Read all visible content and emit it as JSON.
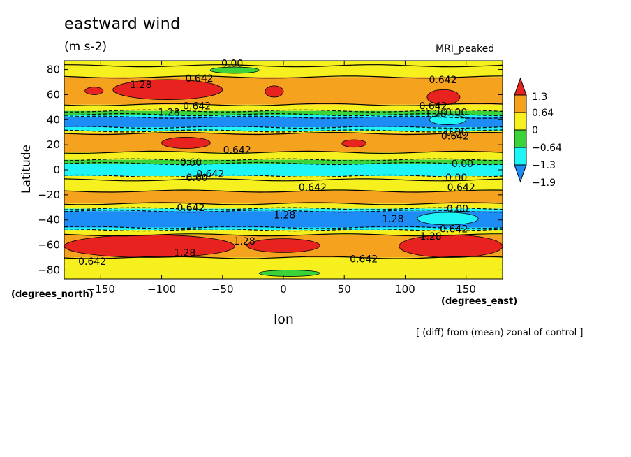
{
  "chart_data": {
    "type": "heatmap",
    "title": "eastward wind",
    "units": "(m s-2)",
    "model_label": "MRI_peaked",
    "xlabel": "lon",
    "ylabel": "Latitude",
    "x_units": "(degrees_east)",
    "y_units": "(degrees_north)",
    "footnote": "[ (diff) from (mean) zonal of control ]",
    "xlim": [
      -180,
      180
    ],
    "ylim": [
      -87,
      87
    ],
    "x_ticks": [
      -150,
      -100,
      -50,
      0,
      50,
      100,
      150
    ],
    "x_tick_labels": [
      "−150",
      "−100",
      "−50",
      "0",
      "50",
      "100",
      "150"
    ],
    "y_ticks": [
      -80,
      -60,
      -40,
      -20,
      0,
      20,
      40,
      60,
      80
    ],
    "y_tick_labels": [
      "−80",
      "−60",
      "−40",
      "−20",
      "0",
      "20",
      "40",
      "60",
      "80"
    ],
    "colorbar": {
      "levels": [
        1.3,
        0.64,
        0,
        -0.64,
        -1.3,
        -1.9
      ],
      "labels": [
        "1.3",
        "0.64",
        "0",
        "−0.64",
        "−1.3",
        "−1.9"
      ],
      "colors": [
        "#e8221f",
        "#f5a21e",
        "#f5f01e",
        "#3ad43a",
        "#1ef5f5",
        "#1e8cf5"
      ]
    },
    "bands": [
      {
        "lat_from": 87,
        "lat_to": 83,
        "value": 0.3
      },
      {
        "lat_from": 83,
        "lat_to": 74,
        "value": 0.3
      },
      {
        "lat_from": 74,
        "lat_to": 52,
        "value": 0.9
      },
      {
        "lat_from": 52,
        "lat_to": 47,
        "value": 0.3
      },
      {
        "lat_from": 47,
        "lat_to": 44,
        "value": -0.3
      },
      {
        "lat_from": 44,
        "lat_to": 42,
        "value": -1.0
      },
      {
        "lat_from": 42,
        "lat_to": 34,
        "value": -1.6
      },
      {
        "lat_from": 34,
        "lat_to": 31,
        "value": -1.0
      },
      {
        "lat_from": 31,
        "lat_to": 29,
        "value": 0.3
      },
      {
        "lat_from": 29,
        "lat_to": 14,
        "value": 0.9
      },
      {
        "lat_from": 14,
        "lat_to": 8,
        "value": 0.3
      },
      {
        "lat_from": 8,
        "lat_to": 5,
        "value": -0.3
      },
      {
        "lat_from": 5,
        "lat_to": -5,
        "value": -1.0
      },
      {
        "lat_from": -5,
        "lat_to": -8,
        "value": 0.3
      },
      {
        "lat_from": -8,
        "lat_to": -17,
        "value": 0.3
      },
      {
        "lat_from": -17,
        "lat_to": -27,
        "value": 0.9
      },
      {
        "lat_from": -27,
        "lat_to": -31,
        "value": 0.3
      },
      {
        "lat_from": -31,
        "lat_to": -33,
        "value": -1.0
      },
      {
        "lat_from": -33,
        "lat_to": -46,
        "value": -1.6
      },
      {
        "lat_from": -46,
        "lat_to": -48,
        "value": -1.0
      },
      {
        "lat_from": -48,
        "lat_to": -52,
        "value": 0.3
      },
      {
        "lat_from": -52,
        "lat_to": -70,
        "value": 0.9
      },
      {
        "lat_from": -70,
        "lat_to": -87,
        "value": 0.3
      }
    ],
    "patches": [
      {
        "lon": [
          -163,
          -148
        ],
        "lat": [
          66,
          60
        ],
        "value": 1.5
      },
      {
        "lon": [
          -140,
          -50
        ],
        "lat": [
          72,
          56
        ],
        "value": 1.5
      },
      {
        "lon": [
          -15,
          0
        ],
        "lat": [
          67,
          58
        ],
        "value": 1.5
      },
      {
        "lon": [
          118,
          145
        ],
        "lat": [
          64,
          52
        ],
        "value": 1.5
      },
      {
        "lon": [
          -100,
          -60
        ],
        "lat": [
          26,
          17
        ],
        "value": 1.5
      },
      {
        "lon": [
          48,
          68
        ],
        "lat": [
          24,
          18
        ],
        "value": 1.5
      },
      {
        "lon": [
          -180,
          -40
        ],
        "lat": [
          -52,
          -70
        ],
        "value": 1.5
      },
      {
        "lon": [
          -30,
          30
        ],
        "lat": [
          -55,
          -66
        ],
        "value": 1.5
      },
      {
        "lon": [
          95,
          180
        ],
        "lat": [
          -52,
          -70
        ],
        "value": 1.5
      },
      {
        "lon": [
          -60,
          -20
        ],
        "lat": [
          82,
          77
        ],
        "value": -0.3
      },
      {
        "lon": [
          -20,
          30
        ],
        "lat": [
          -80,
          -85
        ],
        "value": -0.3
      },
      {
        "lon": [
          110,
          160
        ],
        "lat": [
          -34,
          -44
        ],
        "value": -1.0
      },
      {
        "lon": [
          120,
          150
        ],
        "lat": [
          44,
          36
        ],
        "value": -1.0
      }
    ],
    "contour_labels": [
      {
        "text": "0.00",
        "lon": -42,
        "lat": 85
      },
      {
        "text": "0.642",
        "lon": -69,
        "lat": 73
      },
      {
        "text": "1.28",
        "lon": -117,
        "lat": 68
      },
      {
        "text": "0.642",
        "lon": 131,
        "lat": 72
      },
      {
        "text": "0.642",
        "lon": -71,
        "lat": 51
      },
      {
        "text": "1.28",
        "lon": -94,
        "lat": 46
      },
      {
        "text": "0.642",
        "lon": 123,
        "lat": 51
      },
      {
        "text": "1.28",
        "lon": 125,
        "lat": 45
      },
      {
        "text": "0.00",
        "lon": 142,
        "lat": 46
      },
      {
        "text": "0.00",
        "lon": 142,
        "lat": 30
      },
      {
        "text": "0.642",
        "lon": 141,
        "lat": 27
      },
      {
        "text": "0.642",
        "lon": -38,
        "lat": 16
      },
      {
        "text": "0.60",
        "lon": -76,
        "lat": 6
      },
      {
        "text": "0.642",
        "lon": -60,
        "lat": -3
      },
      {
        "text": "0.00",
        "lon": 147,
        "lat": 5
      },
      {
        "text": "0.00",
        "lon": 142,
        "lat": -6
      },
      {
        "text": "0.60",
        "lon": -71,
        "lat": -6
      },
      {
        "text": "0.642",
        "lon": 24,
        "lat": -14
      },
      {
        "text": "0.642",
        "lon": 146,
        "lat": -14
      },
      {
        "text": "0.642",
        "lon": -76,
        "lat": -30
      },
      {
        "text": "0.00",
        "lon": 143,
        "lat": -31
      },
      {
        "text": "1.28",
        "lon": 1,
        "lat": -36
      },
      {
        "text": "1.28",
        "lon": 90,
        "lat": -39
      },
      {
        "text": "0.642",
        "lon": 140,
        "lat": -47
      },
      {
        "text": "1.28",
        "lon": 121,
        "lat": -53
      },
      {
        "text": "1.28",
        "lon": -32,
        "lat": -57
      },
      {
        "text": "1.28",
        "lon": -81,
        "lat": -66
      },
      {
        "text": "0.642",
        "lon": -157,
        "lat": -73
      },
      {
        "text": "0.642",
        "lon": 66,
        "lat": -71
      }
    ]
  }
}
